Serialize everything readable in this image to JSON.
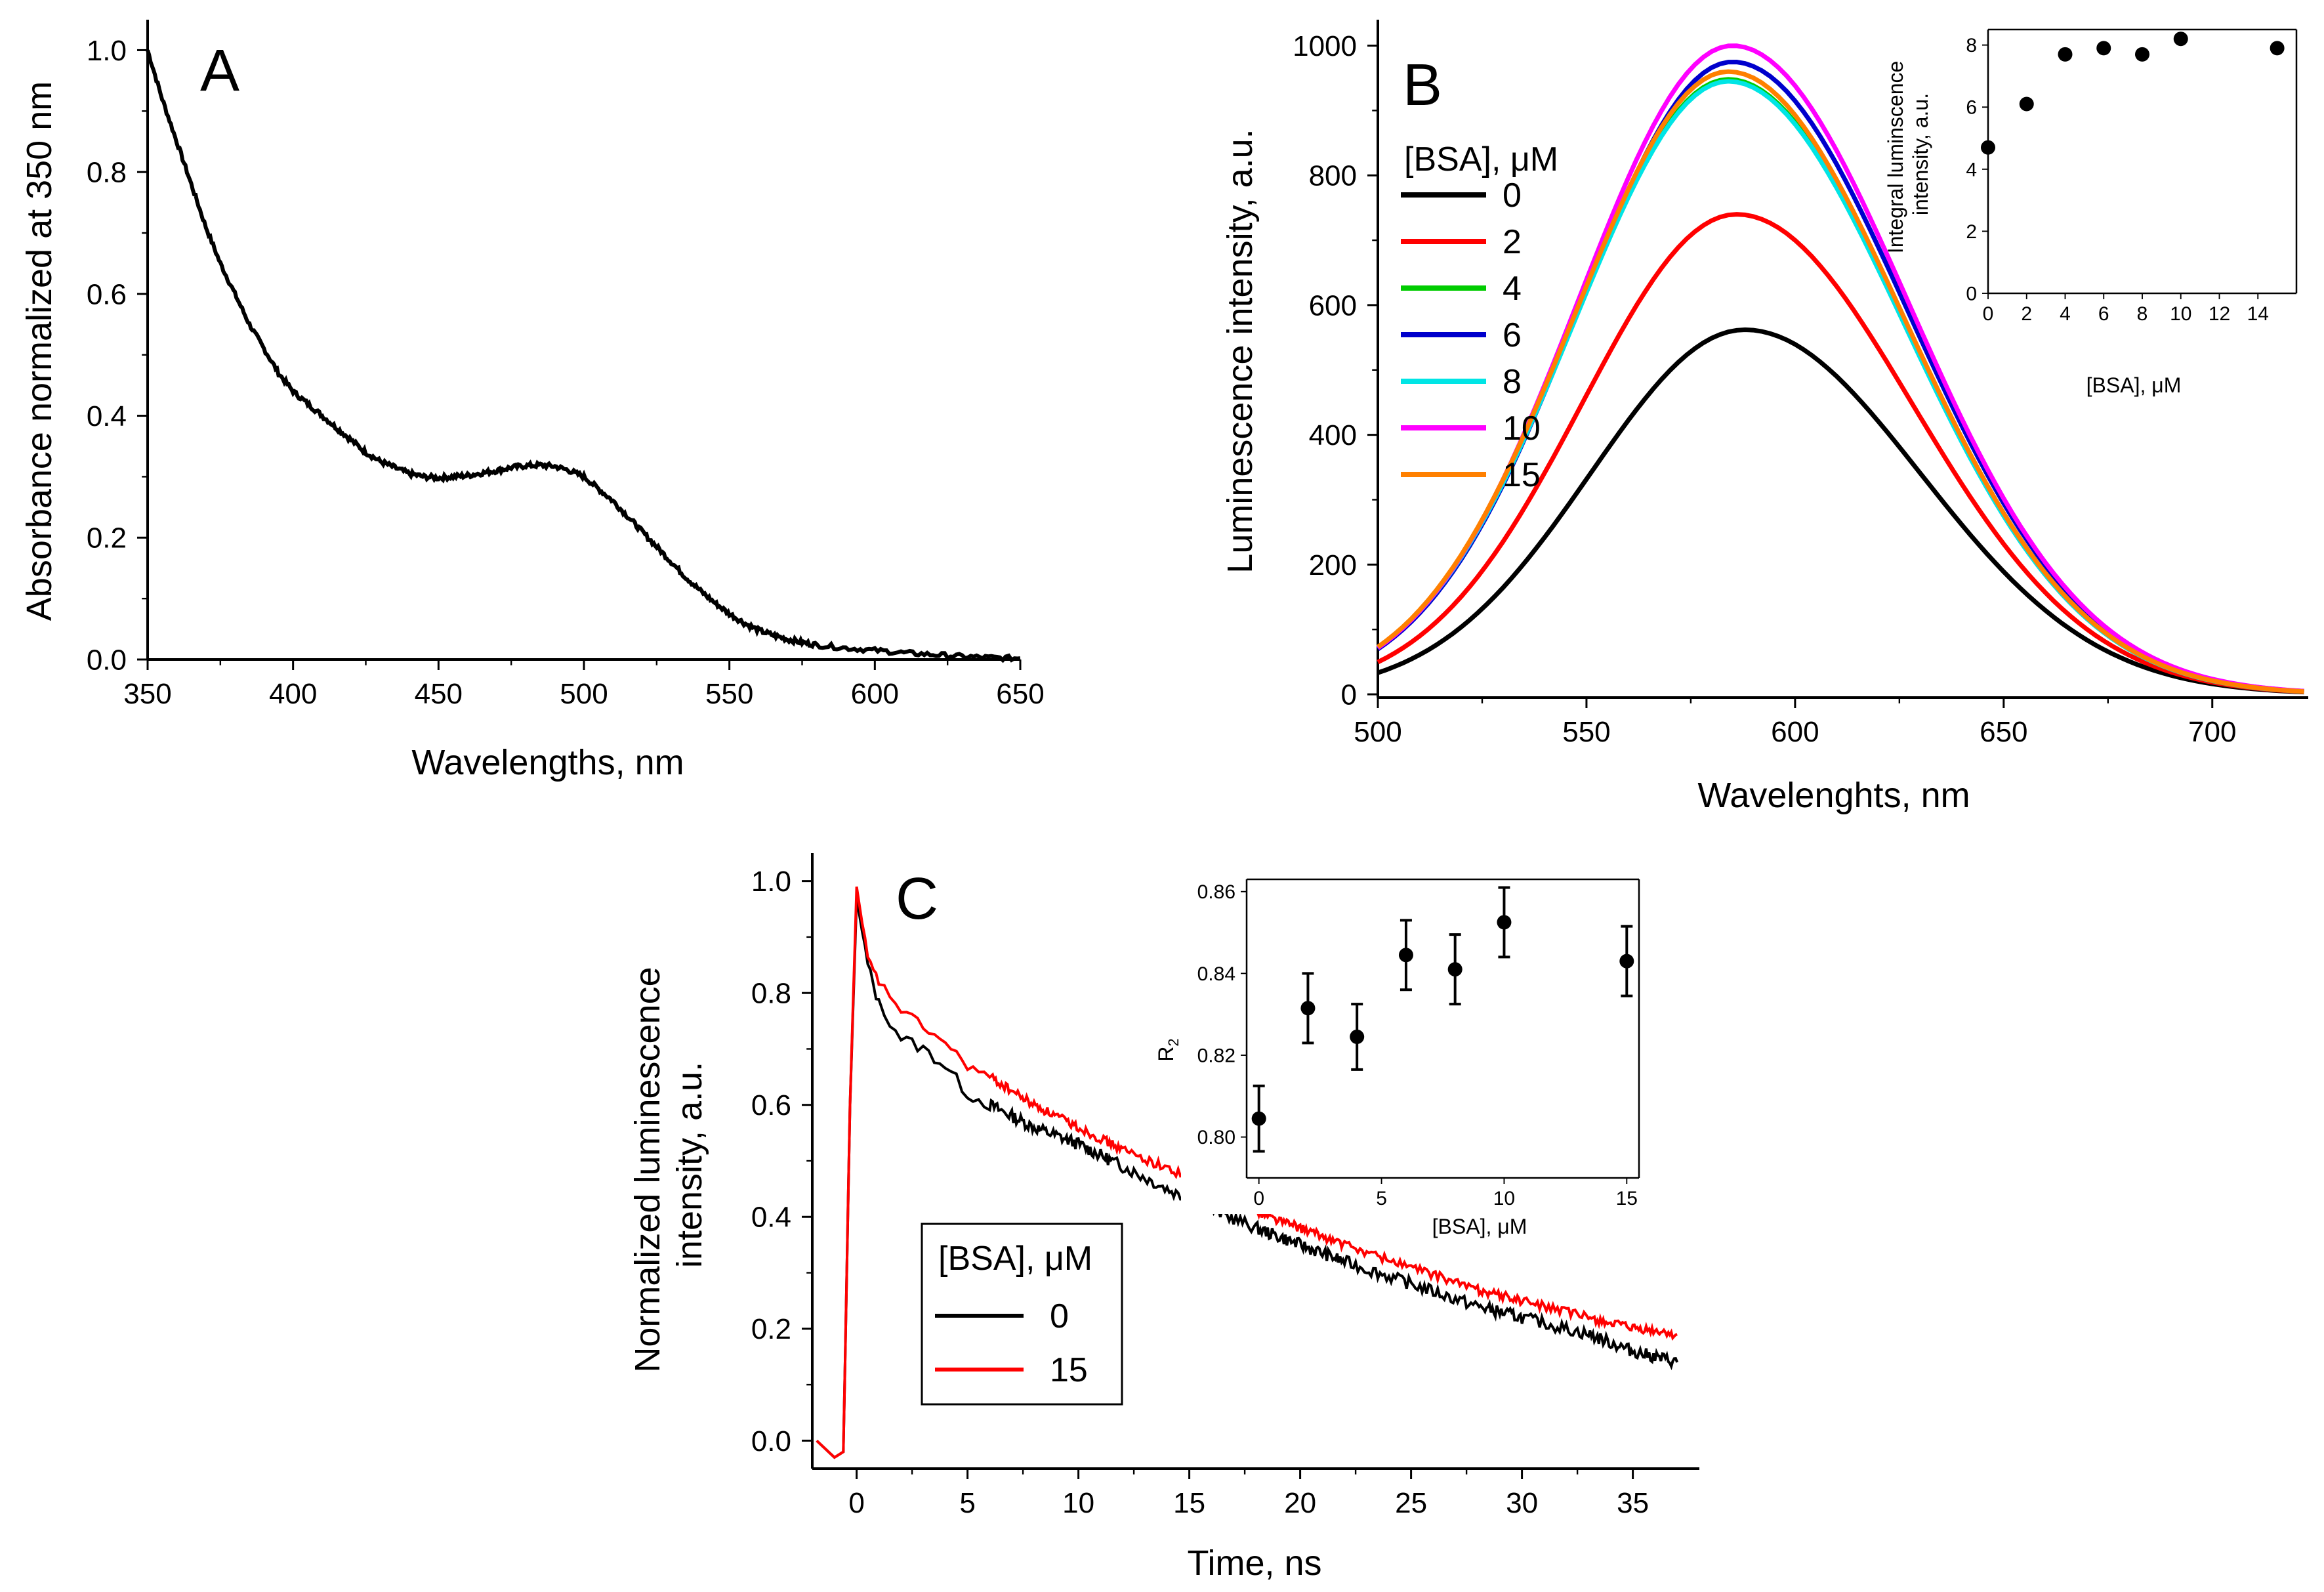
{
  "chart_data": [
    {
      "panel": "A",
      "type": "line",
      "xlabel": "Wavelengths, nm",
      "ylabel": "Absorbance normalized at 350 nm",
      "xlim": [
        350,
        650
      ],
      "ylim": [
        0,
        1.05
      ],
      "xticks": [
        350,
        400,
        450,
        500,
        550,
        600,
        650
      ],
      "yticks": [
        0.0,
        0.2,
        0.4,
        0.6,
        0.8,
        1.0
      ],
      "xtick_labels": [
        "350",
        "400",
        "450",
        "500",
        "550",
        "600",
        "650"
      ],
      "ytick_labels": [
        "0.0",
        "0.2",
        "0.4",
        "0.6",
        "0.8",
        "1.0"
      ],
      "series": [
        {
          "name": "absorbance",
          "color": "#000000",
          "x": [
            350,
            355,
            360,
            365,
            370,
            375,
            380,
            385,
            390,
            395,
            400,
            405,
            410,
            415,
            420,
            425,
            430,
            435,
            440,
            445,
            450,
            455,
            460,
            465,
            470,
            475,
            480,
            485,
            490,
            495,
            500,
            505,
            510,
            515,
            520,
            525,
            530,
            535,
            540,
            545,
            550,
            555,
            560,
            565,
            570,
            575,
            580,
            590,
            600,
            610,
            620,
            630,
            640,
            650
          ],
          "y": [
            1.0,
            0.92,
            0.85,
            0.78,
            0.71,
            0.65,
            0.6,
            0.55,
            0.51,
            0.47,
            0.44,
            0.42,
            0.4,
            0.38,
            0.36,
            0.34,
            0.325,
            0.315,
            0.305,
            0.3,
            0.298,
            0.3,
            0.302,
            0.306,
            0.31,
            0.315,
            0.318,
            0.319,
            0.317,
            0.31,
            0.3,
            0.28,
            0.26,
            0.235,
            0.21,
            0.185,
            0.16,
            0.135,
            0.113,
            0.093,
            0.075,
            0.06,
            0.048,
            0.04,
            0.033,
            0.028,
            0.024,
            0.019,
            0.015,
            0.011,
            0.008,
            0.005,
            0.003,
            0.002
          ]
        }
      ]
    },
    {
      "panel": "B",
      "type": "line",
      "xlabel": "Wavelenghts, nm",
      "ylabel": "Luminescence intensity, a.u.",
      "xlim": [
        500,
        723
      ],
      "ylim": [
        -5,
        1040
      ],
      "xticks": [
        500,
        550,
        600,
        650,
        700
      ],
      "yticks": [
        0,
        200,
        400,
        600,
        800,
        1000
      ],
      "xtick_labels": [
        "500",
        "550",
        "600",
        "650",
        "700"
      ],
      "ytick_labels": [
        "0",
        "200",
        "400",
        "600",
        "800",
        "1000"
      ],
      "legend_title": "[BSA], μM",
      "series": [
        {
          "name": "0",
          "color": "#000000",
          "peak": 562,
          "center": 588,
          "base": 15
        },
        {
          "name": "2",
          "color": "#ff0000",
          "peak": 740,
          "center": 586,
          "base": 20
        },
        {
          "name": "4",
          "color": "#00cc00",
          "peak": 948,
          "center": 584,
          "base": 28
        },
        {
          "name": "6",
          "color": "#0000cc",
          "peak": 975,
          "center": 585,
          "base": 26
        },
        {
          "name": "8",
          "color": "#00e5e5",
          "peak": 945,
          "center": 584,
          "base": 30
        },
        {
          "name": "10",
          "color": "#ff00ff",
          "peak": 1000,
          "center": 585,
          "base": 27
        },
        {
          "name": "15",
          "color": "#ff8000",
          "peak": 960,
          "center": 584,
          "base": 32
        }
      ],
      "inset": {
        "type": "scatter",
        "xlabel": "[BSA], μM",
        "ylabel": "Integral luminscence intensity, a.u.",
        "xlim": [
          0,
          16
        ],
        "ylim": [
          0,
          8.5
        ],
        "xticks": [
          0,
          2,
          4,
          6,
          8,
          10,
          12,
          14
        ],
        "yticks": [
          0,
          2,
          4,
          6,
          8
        ],
        "xtick_labels": [
          "0",
          "2",
          "4",
          "6",
          "8",
          "10",
          "12",
          "14"
        ],
        "ytick_labels": [
          "0",
          "2",
          "4",
          "6",
          "8"
        ],
        "x": [
          0,
          2,
          4,
          6,
          8,
          10,
          15
        ],
        "y": [
          4.7,
          6.1,
          7.7,
          7.9,
          7.7,
          8.2,
          7.9
        ]
      }
    },
    {
      "panel": "C",
      "type": "line",
      "xlabel": "Time, ns",
      "ylabel": "Normalized luminescence intensity, a.u.",
      "xlim": [
        -2,
        38
      ],
      "ylim": [
        -0.05,
        1.05
      ],
      "xticks": [
        0,
        5,
        10,
        15,
        20,
        25,
        30,
        35
      ],
      "yticks": [
        0.0,
        0.2,
        0.4,
        0.6,
        0.8,
        1.0
      ],
      "xtick_labels": [
        "0",
        "5",
        "10",
        "15",
        "20",
        "25",
        "30",
        "35"
      ],
      "ytick_labels": [
        "0.0",
        "0.2",
        "0.4",
        "0.6",
        "0.8",
        "1.0"
      ],
      "legend_title": "[BSA], μM",
      "series": [
        {
          "name": "0",
          "color": "#000000",
          "x": [
            -1.8,
            -1,
            -0.6,
            -0.3,
            0,
            0.5,
            1,
            2,
            3,
            4,
            5,
            6,
            8,
            10,
            12,
            15,
            18,
            20,
            22,
            25,
            28,
            30,
            33,
            35,
            37
          ],
          "y": [
            0.0,
            -0.03,
            -0.02,
            0.6,
            0.97,
            0.85,
            0.78,
            0.72,
            0.7,
            0.67,
            0.62,
            0.6,
            0.56,
            0.53,
            0.49,
            0.43,
            0.38,
            0.35,
            0.32,
            0.28,
            0.24,
            0.22,
            0.19,
            0.16,
            0.14
          ]
        },
        {
          "name": "15",
          "color": "#ff0000",
          "x": [
            -1.8,
            -1,
            -0.6,
            -0.3,
            0,
            0.5,
            1,
            2,
            3,
            4,
            5,
            6,
            8,
            10,
            12,
            15,
            18,
            20,
            22,
            25,
            28,
            30,
            33,
            35,
            37
          ],
          "y": [
            0.0,
            -0.03,
            -0.02,
            0.6,
            0.99,
            0.86,
            0.82,
            0.77,
            0.74,
            0.71,
            0.67,
            0.65,
            0.6,
            0.56,
            0.52,
            0.47,
            0.41,
            0.38,
            0.35,
            0.31,
            0.27,
            0.25,
            0.22,
            0.2,
            0.19
          ]
        }
      ],
      "inset": {
        "type": "scatter",
        "xlabel": "[BSA], μM",
        "ylabel": "R₂",
        "xlim": [
          -0.5,
          15.5
        ],
        "ylim": [
          0.79,
          0.863
        ],
        "xticks": [
          0,
          5,
          10,
          15
        ],
        "yticks": [
          0.8,
          0.82,
          0.84,
          0.86
        ],
        "xtick_labels": [
          "0",
          "5",
          "10",
          "15"
        ],
        "ytick_labels": [
          "0.80",
          "0.82",
          "0.84",
          "0.86"
        ],
        "x": [
          0,
          2,
          4,
          6,
          8,
          10,
          15
        ],
        "y": [
          0.8045,
          0.8315,
          0.8245,
          0.8445,
          0.841,
          0.8525,
          0.843
        ],
        "err": [
          0.008,
          0.0085,
          0.008,
          0.0085,
          0.0085,
          0.0085,
          0.0085
        ]
      }
    }
  ],
  "panel_labels": {
    "A": "A",
    "B": "B",
    "C": "C"
  }
}
